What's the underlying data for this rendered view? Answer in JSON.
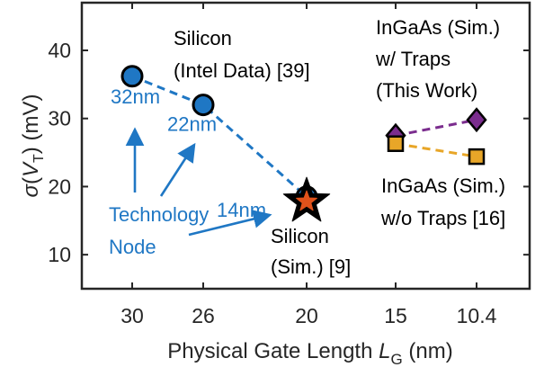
{
  "colors": {
    "silicon_blue": "#1f77c4",
    "ingaas_traps_purple": "#7b2d8e",
    "ingaas_no_traps_orange": "#e8a628",
    "sim_star_red": "#e0521b",
    "axis": "#262626"
  },
  "chart_data": {
    "type": "scatter",
    "title": "",
    "xlabel": "Physical Gate Length L_G (nm)",
    "xlabel_parts": {
      "main": "Physical Gate Length ",
      "var": "L",
      "sub": "G",
      "unit": " (nm)"
    },
    "ylabel": "σ(V_T) (mV)",
    "ylabel_parts": {
      "sigma": "σ",
      "open": "(",
      "var": "V",
      "sub": "T",
      "close": ") (mV)"
    },
    "categories": [
      "30",
      "26",
      "20",
      "15",
      "10.4"
    ],
    "ylim": [
      5,
      47
    ],
    "yticks": [
      10,
      20,
      30,
      40
    ],
    "grid": false,
    "legend": "none",
    "series": [
      {
        "name": "Silicon (Intel Data) [39]",
        "marker": "circle",
        "color": "#1f77c4",
        "points": [
          {
            "category": "30",
            "y": 36.2,
            "label": "32nm"
          },
          {
            "category": "26",
            "y": 32.0,
            "label": "22nm"
          },
          {
            "category": "20",
            "y": 18.5,
            "label": "14nm"
          }
        ]
      },
      {
        "name": "Silicon (Sim.) [9]",
        "marker": "star",
        "color": "#e0521b",
        "points": [
          {
            "category": "20",
            "y": 17.8
          }
        ]
      },
      {
        "name": "InGaAs (Sim.) w/ Traps (This Work)",
        "marker": "diamond",
        "color": "#7b2d8e",
        "points": [
          {
            "category": "15",
            "y": 27.5
          },
          {
            "category": "10.4",
            "y": 29.8
          }
        ]
      },
      {
        "name": "InGaAs (Sim.) w/o Traps [16]",
        "marker": "square",
        "color": "#e8a628",
        "points": [
          {
            "category": "15",
            "y": 26.3
          },
          {
            "category": "10.4",
            "y": 24.4
          }
        ]
      }
    ],
    "annotations": {
      "silicon_intel_line1": "Silicon",
      "silicon_intel_line2": "(Intel Data) [39]",
      "ingaas_traps_line1": "InGaAs (Sim.)",
      "ingaas_traps_line2": "w/ Traps",
      "ingaas_traps_line3": "(This Work)",
      "ingaas_notraps_line1": "InGaAs (Sim.)",
      "ingaas_notraps_line2": "w/o Traps [16]",
      "silicon_sim_line1": "Silicon",
      "silicon_sim_line2": "(Sim.) [9]",
      "technology_line1": "Technology",
      "technology_line2": "Node"
    }
  }
}
